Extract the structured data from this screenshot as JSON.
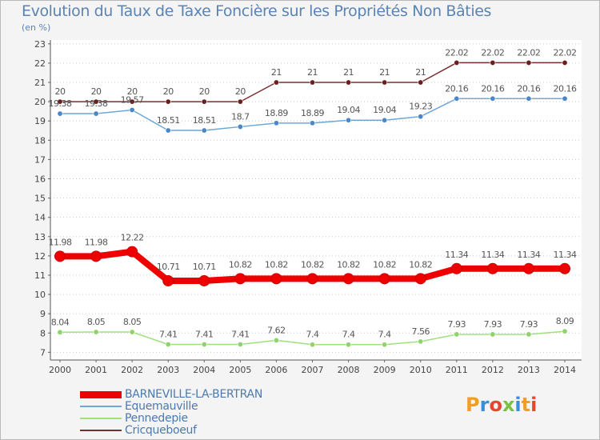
{
  "header": {
    "title": "Evolution du Taux de Taxe Foncière sur les Propriétés Non Bâties",
    "unit": "(en %)"
  },
  "logo": {
    "text": "Proxiti"
  },
  "chart_data": {
    "type": "line",
    "title": "Evolution du Taux de Taxe Foncière sur les Propriétés Non Bâties",
    "ylabel": "(en %)",
    "xlabel": "",
    "x": [
      "2000",
      "2001",
      "2002",
      "2003",
      "2004",
      "2005",
      "2006",
      "2007",
      "2008",
      "2009",
      "2010",
      "2011",
      "2012",
      "2013",
      "2014"
    ],
    "yticks": [
      7,
      8,
      9,
      10,
      11,
      12,
      13,
      14,
      15,
      16,
      17,
      18,
      19,
      20,
      21,
      22,
      23
    ],
    "ylim": [
      6.6,
      23.2
    ],
    "grid": "dotted-horizontal",
    "legend_position": "bottom-left",
    "series": [
      {
        "name": "BARNEVILLE-LA-BERTRAN",
        "color": "#ee0000",
        "marker": "#ee0000",
        "width": 8,
        "values": [
          11.98,
          11.98,
          12.22,
          10.71,
          10.71,
          10.82,
          10.82,
          10.82,
          10.82,
          10.82,
          10.82,
          11.34,
          11.34,
          11.34,
          11.34
        ]
      },
      {
        "name": "Equemauville",
        "color": "#6da6d9",
        "marker": "#4a86c8",
        "width": 1.5,
        "values": [
          19.38,
          19.38,
          19.57,
          18.51,
          18.51,
          18.7,
          18.89,
          18.89,
          19.04,
          19.04,
          19.23,
          20.16,
          20.16,
          20.16,
          20.16
        ]
      },
      {
        "name": "Pennedepie",
        "color": "#9ee07e",
        "marker": "#8fd36c",
        "width": 1.5,
        "values": [
          8.04,
          8.05,
          8.05,
          7.41,
          7.41,
          7.41,
          7.62,
          7.4,
          7.4,
          7.4,
          7.56,
          7.93,
          7.93,
          7.93,
          8.09
        ]
      },
      {
        "name": "Cricqueboeuf",
        "color": "#7a2f2f",
        "marker": "#6a1f1f",
        "width": 1.5,
        "values": [
          20,
          20,
          20,
          20,
          20,
          20,
          21,
          21,
          21,
          21,
          21,
          22.02,
          22.02,
          22.02,
          22.02
        ]
      }
    ],
    "data_labels": [
      [
        "11.98",
        "11.98",
        "12.22",
        "10.71",
        "10.71",
        "10.82",
        "10.82",
        "10.82",
        "10.82",
        "10.82",
        "10.82",
        "11.34",
        "11.34",
        "11.34",
        "11.34"
      ],
      [
        "19.38",
        "19.38",
        "19.57",
        "18.51",
        "18.51",
        "18.7",
        "18.89",
        "18.89",
        "19.04",
        "19.04",
        "19.23",
        "20.16",
        "20.16",
        "20.16",
        "20.16"
      ],
      [
        "8.04",
        "8.05",
        "8.05",
        "7.41",
        "7.41",
        "7.41",
        "7.62",
        "7.4",
        "7.4",
        "7.4",
        "7.56",
        "7.93",
        "7.93",
        "7.93",
        "8.09"
      ],
      [
        "20",
        "20",
        "20",
        "20",
        "20",
        "20",
        "21",
        "21",
        "21",
        "21",
        "21",
        "22.02",
        "22.02",
        "22.02",
        "22.02"
      ]
    ]
  }
}
